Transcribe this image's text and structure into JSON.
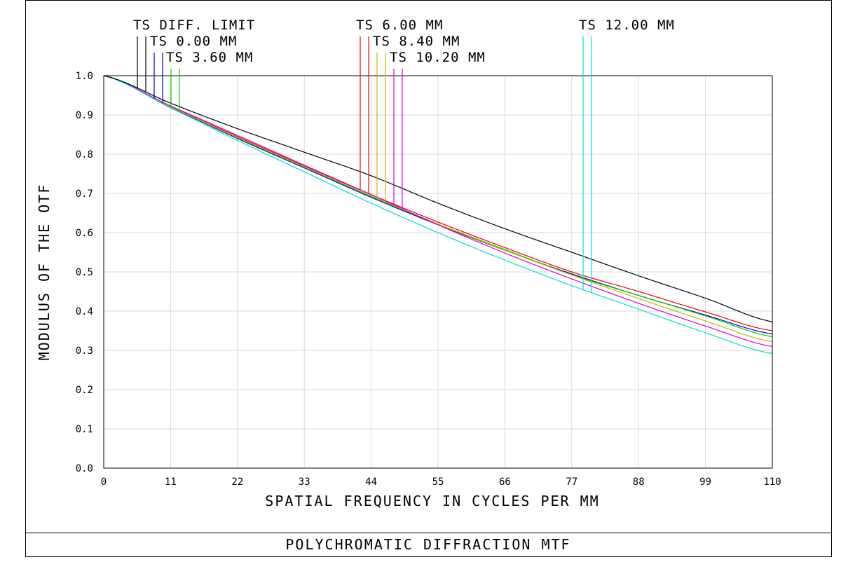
{
  "chart_data": {
    "type": "line",
    "title": "POLYCHROMATIC DIFFRACTION MTF",
    "xlabel": "SPATIAL FREQUENCY IN CYCLES PER MM",
    "ylabel": "MODULUS OF THE OTF",
    "xlim": [
      0,
      110
    ],
    "ylim": [
      0,
      1
    ],
    "grid": true,
    "xticks": [
      "0",
      "11",
      "22",
      "33",
      "44",
      "55",
      "66",
      "77",
      "88",
      "99",
      "110"
    ],
    "yticks": [
      "0.0",
      "0.1",
      "0.2",
      "0.3",
      "0.4",
      "0.5",
      "0.6",
      "0.7",
      "0.8",
      "0.9",
      "1.0"
    ],
    "x": [
      0,
      11,
      22,
      33,
      44,
      55,
      66,
      77,
      88,
      99,
      110
    ],
    "legend": [
      {
        "label": "TS DIFF. LIMIT",
        "color": "#000000"
      },
      {
        "label": "TS 0.00 MM",
        "color": "#0000cc"
      },
      {
        "label": "TS 3.60 MM",
        "color": "#00cc00"
      },
      {
        "label": "TS 6.00 MM",
        "color": "#ee0000"
      },
      {
        "label": "TS 8.40 MM",
        "color": "#c8b400"
      },
      {
        "label": "TS 10.20 MM",
        "color": "#dd00dd"
      },
      {
        "label": "TS 12.00 MM",
        "color": "#00dddd"
      }
    ],
    "series": [
      {
        "name": "TS DIFF. LIMIT",
        "color": "#000000",
        "values": [
          1.0,
          0.93,
          0.865,
          0.805,
          0.745,
          0.675,
          0.61,
          0.55,
          0.49,
          0.433,
          0.373
        ]
      },
      {
        "name": "TS 0.00 MM",
        "color": "#0000cc",
        "values": [
          1.0,
          0.92,
          0.84,
          0.765,
          0.69,
          0.62,
          0.555,
          0.495,
          0.44,
          0.39,
          0.342
        ]
      },
      {
        "name": "TS 3.60 MM",
        "color": "#00cc00",
        "values": [
          1.0,
          0.921,
          0.842,
          0.767,
          0.692,
          0.622,
          0.557,
          0.493,
          0.44,
          0.388,
          0.335
        ]
      },
      {
        "name": "TS 6.00 MM",
        "color": "#ee0000",
        "values": [
          1.0,
          0.922,
          0.845,
          0.77,
          0.697,
          0.627,
          0.562,
          0.5,
          0.45,
          0.398,
          0.35
        ]
      },
      {
        "name": "TS 8.40 MM",
        "color": "#c8b400",
        "values": [
          1.0,
          0.921,
          0.843,
          0.768,
          0.694,
          0.622,
          0.555,
          0.492,
          0.432,
          0.375,
          0.322
        ]
      },
      {
        "name": "TS 10.20 MM",
        "color": "#dd00dd",
        "values": [
          1.0,
          0.923,
          0.848,
          0.772,
          0.697,
          0.62,
          0.548,
          0.482,
          0.42,
          0.362,
          0.31
        ]
      },
      {
        "name": "TS 12.00 MM",
        "color": "#00dddd",
        "values": [
          1.0,
          0.918,
          0.835,
          0.755,
          0.675,
          0.6,
          0.53,
          0.465,
          0.405,
          0.345,
          0.292
        ]
      }
    ]
  }
}
